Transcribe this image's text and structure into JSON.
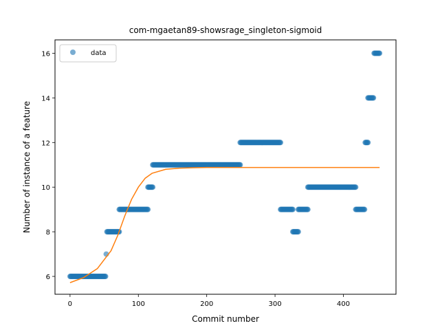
{
  "chart_data": {
    "type": "scatter",
    "title": "com-mgaetan89-showsrage_singleton-sigmoid",
    "xlabel": "Commit number",
    "ylabel": "Number of instance of a feature",
    "xlim": [
      -22,
      477
    ],
    "ylim": [
      5.2,
      16.6
    ],
    "xticks": [
      0,
      100,
      200,
      300,
      400
    ],
    "yticks": [
      6,
      8,
      10,
      12,
      14,
      16
    ],
    "grid": false,
    "legend": {
      "location": "upper-left",
      "entries": [
        "data"
      ]
    },
    "colors": {
      "data": "#1f77b4",
      "fit": "#ff7f0e"
    },
    "scatter_segments": [
      {
        "x_start": 0,
        "x_end": 52,
        "y": 6
      },
      {
        "x_start": 53,
        "x_end": 53,
        "y": 7
      },
      {
        "x_start": 54,
        "x_end": 72,
        "y": 8
      },
      {
        "x_start": 72,
        "x_end": 114,
        "y": 9
      },
      {
        "x_start": 114,
        "x_end": 121,
        "y": 10
      },
      {
        "x_start": 121,
        "x_end": 249,
        "y": 11
      },
      {
        "x_start": 249,
        "x_end": 308,
        "y": 12
      },
      {
        "x_start": 308,
        "x_end": 326,
        "y": 9
      },
      {
        "x_start": 326,
        "x_end": 334,
        "y": 8
      },
      {
        "x_start": 334,
        "x_end": 348,
        "y": 9
      },
      {
        "x_start": 348,
        "x_end": 418,
        "y": 10
      },
      {
        "x_start": 418,
        "x_end": 431,
        "y": 9
      },
      {
        "x_start": 432,
        "x_end": 436,
        "y": 12
      },
      {
        "x_start": 436,
        "x_end": 444,
        "y": 14
      },
      {
        "x_start": 445,
        "x_end": 453,
        "y": 16
      }
    ],
    "fit_curve": {
      "x": [
        0,
        20,
        40,
        60,
        70,
        80,
        90,
        100,
        110,
        120,
        140,
        160,
        180,
        200,
        250,
        300,
        350,
        400,
        453
      ],
      "y": [
        5.72,
        5.95,
        6.35,
        7.15,
        7.85,
        8.7,
        9.45,
        10.0,
        10.4,
        10.62,
        10.8,
        10.85,
        10.87,
        10.88,
        10.88,
        10.88,
        10.88,
        10.88,
        10.88
      ]
    }
  }
}
